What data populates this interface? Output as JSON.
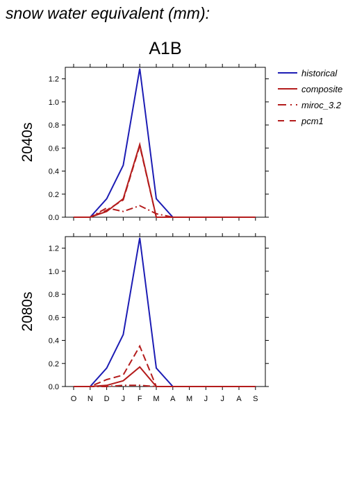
{
  "title": "snow water equivalent (mm):",
  "scenario": "A1B",
  "colors": {
    "historical": "#1c1cb4",
    "models": "#b41c1c",
    "axis": "#000000"
  },
  "chart_data": [
    {
      "type": "line",
      "panel_label": "2040s",
      "categories": [
        "O",
        "N",
        "D",
        "J",
        "F",
        "M",
        "A",
        "M",
        "J",
        "J",
        "A",
        "S"
      ],
      "ylim": [
        0,
        1.3
      ],
      "yticks": [
        "0.0",
        "0.2",
        "0.4",
        "0.6",
        "0.8",
        "1.0",
        "1.2"
      ],
      "show_x_labels": false,
      "series": [
        {
          "name": "historical",
          "style": "solid",
          "color": "#1c1cb4",
          "values": [
            0,
            0,
            0.16,
            0.45,
            1.29,
            0.16,
            0,
            0,
            0,
            0,
            0,
            0
          ]
        },
        {
          "name": "composite",
          "style": "solid",
          "color": "#b41c1c",
          "values": [
            0,
            0,
            0.05,
            0.16,
            0.63,
            0,
            0,
            0,
            0,
            0,
            0,
            0
          ]
        },
        {
          "name": "miroc_3.2",
          "style": "dashdot",
          "color": "#b41c1c",
          "values": [
            0,
            0,
            0.08,
            0.05,
            0.1,
            0.03,
            0,
            0,
            0,
            0,
            0,
            0
          ]
        },
        {
          "name": "pcm1",
          "style": "dash",
          "color": "#b41c1c",
          "values": [
            0,
            0,
            0.06,
            0.15,
            0.62,
            0,
            0,
            0,
            0,
            0,
            0,
            0
          ]
        }
      ]
    },
    {
      "type": "line",
      "panel_label": "2080s",
      "categories": [
        "O",
        "N",
        "D",
        "J",
        "F",
        "M",
        "A",
        "M",
        "J",
        "J",
        "A",
        "S"
      ],
      "ylim": [
        0,
        1.3
      ],
      "yticks": [
        "0.0",
        "0.2",
        "0.4",
        "0.6",
        "0.8",
        "1.0",
        "1.2"
      ],
      "show_x_labels": true,
      "series": [
        {
          "name": "historical",
          "style": "solid",
          "color": "#1c1cb4",
          "values": [
            0,
            0,
            0.16,
            0.45,
            1.29,
            0.16,
            0,
            0,
            0,
            0,
            0,
            0
          ]
        },
        {
          "name": "composite",
          "style": "solid",
          "color": "#b41c1c",
          "values": [
            0,
            0,
            0.01,
            0.05,
            0.17,
            0,
            0,
            0,
            0,
            0,
            0,
            0
          ]
        },
        {
          "name": "miroc_3.2",
          "style": "dashdot",
          "color": "#b41c1c",
          "values": [
            0,
            0,
            0,
            0.01,
            0.01,
            0,
            0,
            0,
            0,
            0,
            0,
            0
          ]
        },
        {
          "name": "pcm1",
          "style": "dash",
          "color": "#b41c1c",
          "values": [
            0,
            0,
            0.06,
            0.1,
            0.35,
            0,
            0,
            0,
            0,
            0,
            0,
            0
          ]
        }
      ]
    }
  ],
  "legend": [
    {
      "label": "historical",
      "style": "solid",
      "color": "#1c1cb4"
    },
    {
      "label": "composite",
      "style": "solid",
      "color": "#b41c1c"
    },
    {
      "label": "miroc_3.2",
      "style": "dashdot",
      "color": "#b41c1c"
    },
    {
      "label": "pcm1",
      "style": "dash",
      "color": "#b41c1c"
    }
  ]
}
